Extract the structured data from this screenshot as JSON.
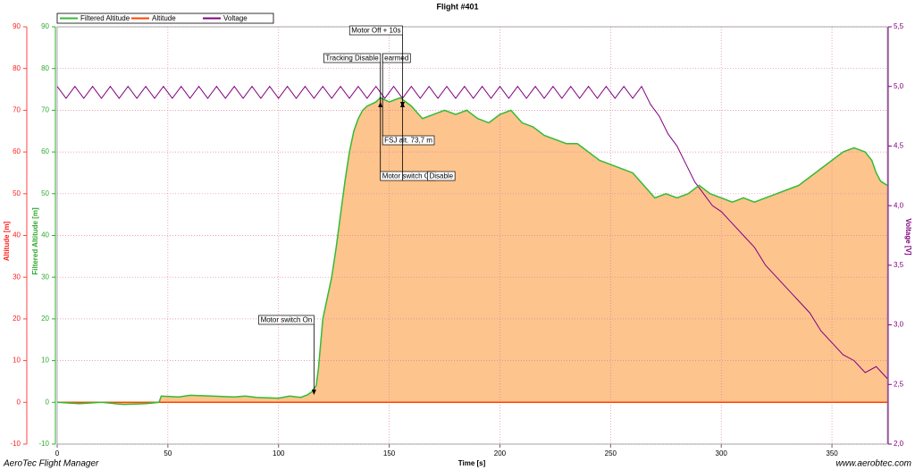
{
  "chart_data": {
    "type": "line",
    "title": "Flight #401",
    "x_label": "Time [s]",
    "y_label": "Altitude [m]",
    "y_label_filtered": "Filtered Altitude [m]",
    "y2_label": "Voltage [V]",
    "footer_left": "AeroTec Flight Manager",
    "footer_right": "www.aerobtec.com",
    "grid": true,
    "legend": "top-left",
    "xlim": [
      0,
      375
    ],
    "xticks": [
      0,
      50,
      100,
      150,
      200,
      250,
      300,
      350
    ],
    "ylim": [
      -10,
      90
    ],
    "yticks": [
      -10,
      0,
      10,
      20,
      30,
      40,
      50,
      60,
      70,
      80,
      90
    ],
    "y2lim": [
      2,
      5.5
    ],
    "y2ticks": [
      {
        "value": 2,
        "label": "2,0"
      },
      {
        "value": 2.5,
        "label": "2,5"
      },
      {
        "value": 3,
        "label": "3,0"
      },
      {
        "value": 3.5,
        "label": "3,5"
      },
      {
        "value": 4,
        "label": "4,0"
      },
      {
        "value": 4.5,
        "label": "4,5"
      },
      {
        "value": 5,
        "label": "5,0"
      },
      {
        "value": 5.5,
        "label": "5,5"
      }
    ],
    "series": [
      {
        "name": "Filtered Altitude",
        "color": "#33bb33",
        "fill": "#fdc48e",
        "x": [
          0,
          10,
          20,
          30,
          40,
          46,
          47,
          55,
          60,
          70,
          80,
          85,
          90,
          100,
          105,
          110,
          113,
          115,
          117,
          118,
          120,
          122,
          124,
          126,
          128,
          130,
          132,
          134,
          136,
          138,
          140,
          142,
          144,
          146,
          150,
          155,
          160,
          165,
          170,
          175,
          180,
          185,
          190,
          195,
          200,
          205,
          210,
          215,
          220,
          225,
          230,
          235,
          240,
          245,
          250,
          255,
          260,
          265,
          270,
          275,
          280,
          285,
          290,
          295,
          300,
          305,
          310,
          315,
          320,
          325,
          330,
          335,
          340,
          345,
          350,
          355,
          360,
          365,
          368,
          370,
          372,
          375
        ],
        "values": [
          0,
          -0.3,
          0,
          -0.5,
          -0.3,
          0,
          1.5,
          1.3,
          1.7,
          1.5,
          1.3,
          1.5,
          1.2,
          1.0,
          1.5,
          1.2,
          1.8,
          2.5,
          4,
          8,
          20,
          25,
          30,
          37,
          45,
          53,
          60,
          65,
          68,
          70,
          71,
          71.5,
          72,
          73,
          72,
          73,
          71,
          68,
          69,
          70,
          69,
          70,
          68,
          67,
          69,
          70,
          67,
          66,
          64,
          63,
          62,
          62,
          60,
          58,
          57,
          56,
          55,
          52,
          49,
          50,
          49,
          50,
          52,
          50,
          49,
          48,
          49,
          48,
          49,
          50,
          51,
          52,
          54,
          56,
          58,
          60,
          61,
          60,
          58,
          55,
          53,
          52
        ]
      },
      {
        "name": "Altitude",
        "color": "#ff4400",
        "x": [
          0,
          375
        ],
        "values": [
          0,
          0
        ]
      },
      {
        "name": "Voltage",
        "color": "#800080",
        "axis": "y2",
        "x": [
          0,
          4,
          8,
          12,
          16,
          20,
          24,
          28,
          32,
          36,
          40,
          44,
          48,
          52,
          56,
          60,
          64,
          68,
          72,
          76,
          80,
          84,
          88,
          92,
          96,
          100,
          104,
          108,
          112,
          116,
          120,
          124,
          128,
          132,
          136,
          140,
          144,
          148,
          152,
          156,
          160,
          164,
          168,
          172,
          176,
          180,
          184,
          188,
          192,
          196,
          200,
          204,
          208,
          212,
          216,
          220,
          224,
          228,
          232,
          236,
          240,
          244,
          248,
          252,
          256,
          260,
          264,
          268,
          272,
          276,
          280,
          284,
          288,
          292,
          296,
          300,
          305,
          310,
          315,
          320,
          325,
          330,
          335,
          340,
          345,
          350,
          355,
          360,
          365,
          370,
          375
        ],
        "values": [
          5,
          4.9,
          5,
          4.9,
          5,
          4.9,
          5,
          4.9,
          5,
          4.9,
          5,
          4.9,
          5,
          4.9,
          5,
          4.9,
          5,
          4.9,
          5,
          4.9,
          5,
          4.9,
          5,
          4.9,
          5,
          4.9,
          5,
          4.9,
          5,
          4.9,
          5,
          4.9,
          5,
          4.9,
          5,
          4.9,
          5,
          4.9,
          5,
          4.9,
          5,
          4.9,
          5,
          4.9,
          5,
          4.9,
          5,
          4.9,
          5,
          4.9,
          5,
          4.9,
          5,
          4.9,
          5,
          4.9,
          5,
          4.9,
          5,
          4.9,
          5,
          4.9,
          5,
          4.9,
          5,
          4.9,
          5,
          4.85,
          4.75,
          4.6,
          4.5,
          4.35,
          4.2,
          4.1,
          4.0,
          3.95,
          3.85,
          3.75,
          3.65,
          3.5,
          3.4,
          3.3,
          3.2,
          3.1,
          2.95,
          2.85,
          2.75,
          2.7,
          2.6,
          2.65,
          2.55
        ]
      }
    ],
    "annotations": [
      {
        "text": "Motor switch On",
        "x": 116
      },
      {
        "text": "Tracking Disable",
        "x": 146
      },
      {
        "text": "earmed",
        "x": 147
      },
      {
        "text": "Motor Off + 10s",
        "x": 156
      },
      {
        "text": "FSJ alt. 73,7 m",
        "x": 147
      },
      {
        "text": "Motor switch Off",
        "x": 146
      },
      {
        "text": "Disable",
        "x": 156
      }
    ]
  }
}
